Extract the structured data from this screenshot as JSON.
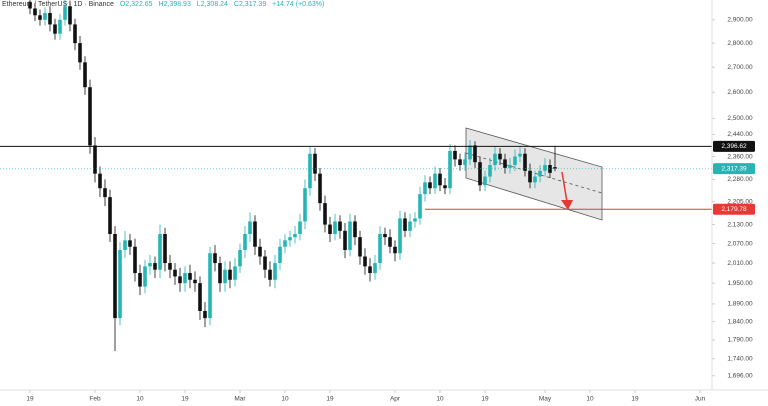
{
  "chart_data": {
    "type": "candlestick",
    "title": "Ethereum / TetherUS · 1D · Binance",
    "ohlc_labels": [
      "O2,322.65",
      "H2,398.93",
      "L2,308.24",
      "C2,317.39",
      "+14.74 (+0.63%)"
    ],
    "up_color": "#26b5b5",
    "down_color": "#111111",
    "log_scale": true,
    "grid": false,
    "x": [
      0,
      1,
      2,
      3,
      4,
      5,
      6,
      7,
      8,
      9,
      10,
      11,
      12,
      13,
      14,
      15,
      16,
      17,
      18,
      19,
      20,
      21,
      22,
      23,
      24,
      25,
      26,
      27,
      28,
      29,
      30,
      31,
      32,
      33,
      34,
      35,
      36,
      37,
      38,
      39,
      40,
      41,
      42,
      43,
      44,
      45,
      46,
      47,
      48,
      49,
      50,
      51,
      52,
      53,
      54,
      55,
      56,
      57,
      58,
      59,
      60,
      61,
      62,
      63,
      64,
      65,
      66,
      67,
      68,
      69,
      70,
      71,
      72,
      73,
      74,
      75,
      76,
      77,
      78,
      79,
      80,
      81,
      82,
      83,
      84,
      85,
      86,
      87,
      88,
      89,
      90,
      91,
      92,
      93,
      94,
      95,
      96,
      97,
      98,
      99,
      100,
      101,
      102,
      103,
      104,
      105
    ],
    "open": [
      2980,
      2950,
      2920,
      2900,
      2930,
      2880,
      2840,
      2900,
      2960,
      2880,
      2800,
      2720,
      2620,
      2400,
      2300,
      2250,
      2220,
      2100,
      1850,
      2050,
      2080,
      2060,
      1980,
      1940,
      2000,
      2010,
      1990,
      2100,
      2010,
      1990,
      1970,
      1950,
      1980,
      1960,
      1950,
      1870,
      1850,
      2040,
      2010,
      1950,
      1990,
      1960,
      2000,
      2050,
      2100,
      2140,
      2060,
      2030,
      1990,
      1960,
      2010,
      2060,
      2080,
      2090,
      2100,
      2140,
      2250,
      2370,
      2300,
      2200,
      2130,
      2100,
      2140,
      2110,
      2050,
      2140,
      2090,
      2030,
      2000,
      1980,
      2010,
      2100,
      2090,
      2060,
      2040,
      2150,
      2110,
      2140,
      2150,
      2230,
      2270,
      2250,
      2300,
      2260,
      2250,
      2380,
      2350,
      2330,
      2350,
      2400,
      2340,
      2260,
      2290,
      2330,
      2370,
      2350,
      2320,
      2330,
      2360,
      2370,
      2310,
      2270,
      2290,
      2310,
      2330,
      2322.65
    ],
    "high": [
      3010,
      2975,
      2945,
      2955,
      2960,
      2905,
      2925,
      2990,
      2985,
      2905,
      2830,
      2745,
      2650,
      2430,
      2325,
      2280,
      2245,
      2125,
      2075,
      2110,
      2100,
      2085,
      2005,
      2020,
      2035,
      2030,
      2130,
      2120,
      2035,
      2010,
      1995,
      2000,
      2005,
      1985,
      1970,
      1895,
      2060,
      2065,
      2030,
      2015,
      2015,
      2025,
      2070,
      2125,
      2170,
      2160,
      2085,
      2050,
      2015,
      2035,
      2085,
      2100,
      2110,
      2125,
      2165,
      2280,
      2395,
      2390,
      2320,
      2225,
      2155,
      2165,
      2160,
      2135,
      2165,
      2160,
      2110,
      2055,
      2025,
      2035,
      2125,
      2120,
      2115,
      2080,
      2175,
      2170,
      2165,
      2170,
      2255,
      2295,
      2290,
      2325,
      2320,
      2285,
      2405,
      2400,
      2370,
      2375,
      2420,
      2415,
      2360,
      2310,
      2355,
      2395,
      2390,
      2370,
      2355,
      2385,
      2395,
      2390,
      2335,
      2310,
      2330,
      2355,
      2350,
      2398.93
    ],
    "low": [
      2925,
      2895,
      2875,
      2875,
      2850,
      2815,
      2815,
      2875,
      2850,
      2770,
      2690,
      2590,
      2370,
      2270,
      2220,
      2190,
      2075,
      1760,
      1830,
      2025,
      2035,
      1955,
      1915,
      1920,
      1975,
      1965,
      1965,
      1985,
      1965,
      1945,
      1925,
      1925,
      1935,
      1925,
      1845,
      1825,
      1830,
      1985,
      1925,
      1925,
      1935,
      1940,
      1980,
      2025,
      2075,
      2035,
      2005,
      1965,
      1940,
      1935,
      1990,
      2040,
      2060,
      2070,
      2080,
      2115,
      2225,
      2275,
      2175,
      2105,
      2075,
      2080,
      2085,
      2025,
      2030,
      2065,
      2005,
      1975,
      1955,
      1960,
      1990,
      2065,
      2040,
      2015,
      2020,
      2090,
      2090,
      2120,
      2130,
      2205,
      2230,
      2230,
      2240,
      2230,
      2230,
      2325,
      2310,
      2310,
      2330,
      2320,
      2240,
      2240,
      2270,
      2310,
      2330,
      2300,
      2300,
      2310,
      2340,
      2290,
      2250,
      2250,
      2270,
      2290,
      2285,
      2308.24
    ],
    "close": [
      2950,
      2920,
      2900,
      2930,
      2880,
      2840,
      2900,
      2960,
      2880,
      2800,
      2720,
      2620,
      2400,
      2300,
      2250,
      2220,
      2100,
      1850,
      2050,
      2080,
      2060,
      1980,
      1940,
      2000,
      2010,
      1990,
      2100,
      2010,
      1990,
      1970,
      1950,
      1980,
      1960,
      1950,
      1870,
      1850,
      2040,
      2010,
      1950,
      1990,
      1960,
      2000,
      2050,
      2100,
      2140,
      2060,
      2030,
      1990,
      1960,
      2010,
      2060,
      2080,
      2090,
      2100,
      2140,
      2250,
      2370,
      2300,
      2200,
      2130,
      2100,
      2140,
      2110,
      2050,
      2140,
      2090,
      2030,
      2000,
      1980,
      2010,
      2100,
      2090,
      2060,
      2040,
      2150,
      2110,
      2140,
      2150,
      2230,
      2270,
      2250,
      2300,
      2260,
      2250,
      2380,
      2350,
      2330,
      2350,
      2400,
      2340,
      2260,
      2290,
      2330,
      2370,
      2350,
      2320,
      2330,
      2360,
      2370,
      2310,
      2270,
      2290,
      2310,
      2330,
      2302.65,
      2317.39
    ],
    "xlim": [
      -6,
      136.4
    ],
    "xticks": [
      {
        "value": 0,
        "label": "19"
      },
      {
        "value": 13,
        "label": "Feb"
      },
      {
        "value": 22,
        "label": "10"
      },
      {
        "value": 31,
        "label": "19"
      },
      {
        "value": 42,
        "label": "Mar"
      },
      {
        "value": 51,
        "label": "10"
      },
      {
        "value": 60,
        "label": "19"
      },
      {
        "value": 73,
        "label": "Apr"
      },
      {
        "value": 82,
        "label": "10"
      },
      {
        "value": 91,
        "label": "19"
      },
      {
        "value": 103,
        "label": "May"
      },
      {
        "value": 112,
        "label": "10"
      },
      {
        "value": 121,
        "label": "19"
      },
      {
        "value": 134,
        "label": "Jun"
      }
    ],
    "ylim": [
      1660,
      2988
    ],
    "yticks": [
      {
        "value": 2900,
        "label": "2,900.00"
      },
      {
        "value": 2800,
        "label": "2,800.00"
      },
      {
        "value": 2700,
        "label": "2,700.00"
      },
      {
        "value": 2600,
        "label": "2,600.00"
      },
      {
        "value": 2500,
        "label": "2,500.00"
      },
      {
        "value": 2440,
        "label": "2,440.00"
      },
      {
        "value": 2360,
        "label": "2,360.00"
      },
      {
        "value": 2280,
        "label": "2,280.00"
      },
      {
        "value": 2205,
        "label": "2,205.00"
      },
      {
        "value": 2130,
        "label": "2,130.00"
      },
      {
        "value": 2070,
        "label": "2,070.00"
      },
      {
        "value": 2010,
        "label": "2,010.00"
      },
      {
        "value": 1950,
        "label": "1,950.00"
      },
      {
        "value": 1890,
        "label": "1,890.00"
      },
      {
        "value": 1840,
        "label": "1,840.00"
      },
      {
        "value": 1790,
        "label": "1,790.00"
      },
      {
        "value": 1740,
        "label": "1,740.00"
      },
      {
        "value": 1696,
        "label": "1,696.00"
      }
    ],
    "price_lines": [
      {
        "value": 2396.62,
        "label": "2,396.62",
        "color": "#111111",
        "x_start": -6
      },
      {
        "value": 2317.39,
        "label": "2,317.39",
        "color": "#26b5b5",
        "x_start": -6
      },
      {
        "value": 2179.78,
        "label": "2,179.78",
        "color": "#e53935",
        "x_start": 79
      }
    ]
  }
}
